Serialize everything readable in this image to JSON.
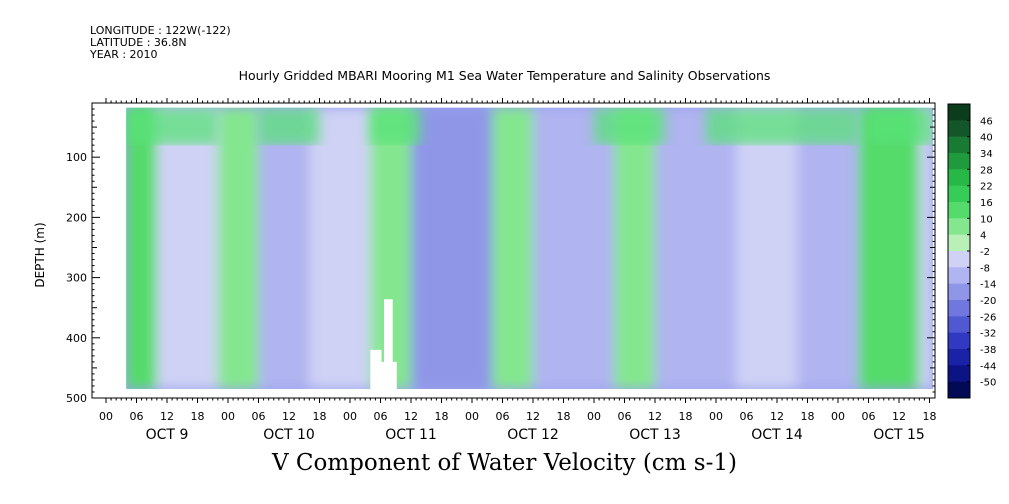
{
  "header": {
    "longitude": "LONGITUDE : 122W(-122)",
    "latitude": "LATITUDE : 36.8N",
    "year": "YEAR : 2010"
  },
  "title": "Hourly Gridded MBARI Mooring M1 Sea Water Temperature and Salinity Observations",
  "bottom_title": "V Component of Water Velocity (cm s-1)",
  "chart_data": {
    "type": "heatmap",
    "title": "Hourly Gridded MBARI Mooring M1 Sea Water Temperature and Salinity Observations",
    "xlabel": "",
    "ylabel": "DEPTH (m)",
    "ylim": [
      500,
      10
    ],
    "y_ticks": [
      100,
      200,
      300,
      400,
      500
    ],
    "y_tick_labels": [
      "100",
      "200",
      "300",
      "400",
      "500"
    ],
    "x_range_hours": [
      0,
      162
    ],
    "x_hour_tick_labels": [
      "00",
      "06",
      "12",
      "18",
      "00",
      "06",
      "12",
      "18",
      "00",
      "06",
      "12",
      "18",
      "00",
      "06",
      "12",
      "18",
      "00",
      "06",
      "12",
      "18",
      "00",
      "06",
      "12",
      "18",
      "00",
      "06",
      "12",
      "18"
    ],
    "date_labels": [
      "OCT  9",
      "OCT 10",
      "OCT 11",
      "OCT 12",
      "OCT 13",
      "OCT 14",
      "OCT 15"
    ],
    "data_start_hour": 4,
    "data_end_hour": 166,
    "data_top_depth": 18,
    "data_bottom_depth": 485,
    "colorbar": {
      "labels": [
        "46",
        "40",
        "34",
        "28",
        "22",
        "16",
        "10",
        "4",
        "-2",
        "-8",
        "-14",
        "-20",
        "-26",
        "-32",
        "-38",
        "-44",
        "-50"
      ],
      "colors": [
        "#0b3d1c",
        "#12562a",
        "#187a33",
        "#1f9a3d",
        "#27b848",
        "#37cc57",
        "#55db6b",
        "#84e78f",
        "#b8f0b8",
        "#cfd2f5",
        "#b0b4f0",
        "#8f96e8",
        "#7077de",
        "#5058d2",
        "#3138c2",
        "#1a22a8",
        "#0c1385",
        "#020a55"
      ]
    },
    "palette": {
      "green": "#58e278",
      "light_green": "#8fec98",
      "blue": "#9aa4ee",
      "mid_blue": "#7f8ae6",
      "deep_blue": "#5f6ddb"
    },
    "field_bands": [
      {
        "start_hour": 4,
        "end_hour": 10,
        "value": 10
      },
      {
        "start_hour": 10,
        "end_hour": 22,
        "value": -8
      },
      {
        "start_hour": 22,
        "end_hour": 30,
        "value": 4
      },
      {
        "start_hour": 30,
        "end_hour": 40,
        "value": -14
      },
      {
        "start_hour": 40,
        "end_hour": 52,
        "value": -8
      },
      {
        "start_hour": 52,
        "end_hour": 60,
        "value": 4
      },
      {
        "start_hour": 60,
        "end_hour": 76,
        "value": -20
      },
      {
        "start_hour": 76,
        "end_hour": 84,
        "value": 4
      },
      {
        "start_hour": 84,
        "end_hour": 100,
        "value": -14
      },
      {
        "start_hour": 100,
        "end_hour": 108,
        "value": 4
      },
      {
        "start_hour": 108,
        "end_hour": 124,
        "value": -14
      },
      {
        "start_hour": 124,
        "end_hour": 136,
        "value": -8
      },
      {
        "start_hour": 136,
        "end_hour": 148,
        "value": -14
      },
      {
        "start_hour": 148,
        "end_hour": 160,
        "value": 10
      },
      {
        "start_hour": 160,
        "end_hour": 166,
        "value": -8
      }
    ]
  }
}
